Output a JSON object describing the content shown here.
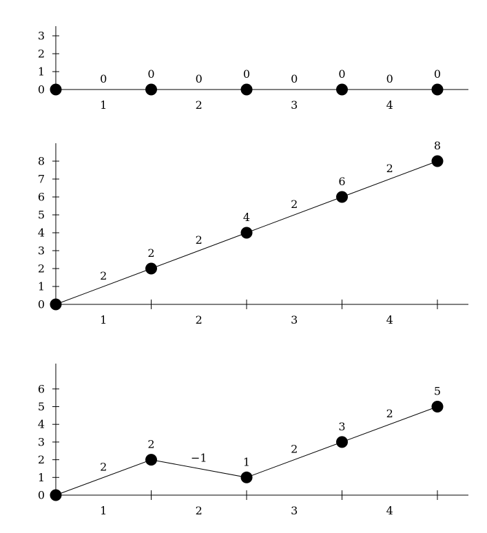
{
  "chart_data": [
    {
      "type": "line",
      "x": [
        0,
        1,
        2,
        3,
        4
      ],
      "y": [
        0,
        0,
        0,
        0,
        0
      ],
      "point_labels": [
        "",
        "0",
        "0",
        "0",
        "0"
      ],
      "segment_labels": [
        "0",
        "0",
        "0",
        "0"
      ],
      "interval_labels": [
        "1",
        "2",
        "3",
        "4"
      ],
      "yticks": [
        "0",
        "1",
        "2",
        "3"
      ],
      "ylim": [
        0,
        3
      ],
      "x_tick_marks": false
    },
    {
      "type": "line",
      "x": [
        0,
        1,
        2,
        3,
        4
      ],
      "y": [
        0,
        2,
        4,
        6,
        8
      ],
      "point_labels": [
        "",
        "2",
        "4",
        "6",
        "8"
      ],
      "segment_labels": [
        "2",
        "2",
        "2",
        "2"
      ],
      "interval_labels": [
        "1",
        "2",
        "3",
        "4"
      ],
      "yticks": [
        "0",
        "1",
        "2",
        "3",
        "4",
        "5",
        "6",
        "7",
        "8"
      ],
      "ylim": [
        0,
        8
      ],
      "x_tick_marks": true
    },
    {
      "type": "line",
      "x": [
        0,
        1,
        2,
        3,
        4
      ],
      "y": [
        0,
        2,
        1,
        3,
        5
      ],
      "point_labels": [
        "",
        "2",
        "1",
        "3",
        "5"
      ],
      "segment_labels": [
        "2",
        "−1",
        "2",
        "2"
      ],
      "interval_labels": [
        "1",
        "2",
        "3",
        "4"
      ],
      "yticks": [
        "0",
        "1",
        "2",
        "3",
        "4",
        "5",
        "6"
      ],
      "ylim": [
        0,
        6
      ],
      "x_tick_marks": true
    }
  ]
}
